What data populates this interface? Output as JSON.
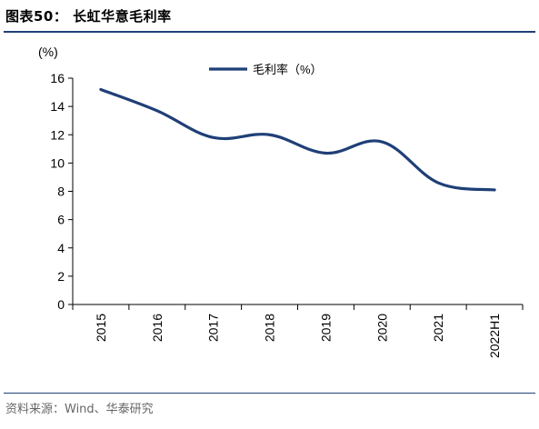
{
  "header": {
    "title": "图表50：  长虹华意毛利率"
  },
  "footer": {
    "source": "资料来源：Wind、华泰研究"
  },
  "colors": {
    "series": "#1f3f77",
    "rule": "#1f3f77",
    "axis": "#000000"
  },
  "chart_data": {
    "type": "line",
    "title": "",
    "xlabel": "",
    "ylabel": "(%)",
    "categories": [
      "2015",
      "2016",
      "2017",
      "2018",
      "2019",
      "2020",
      "2021",
      "2022H1"
    ],
    "series": [
      {
        "name": "毛利率（%）",
        "values": [
          15.2,
          13.7,
          11.8,
          12.0,
          10.7,
          11.5,
          8.6,
          8.1
        ]
      }
    ],
    "ylim": [
      0,
      16
    ],
    "yticks": [
      0,
      2,
      4,
      6,
      8,
      10,
      12,
      14,
      16
    ],
    "grid": false,
    "legend": "top-center"
  }
}
